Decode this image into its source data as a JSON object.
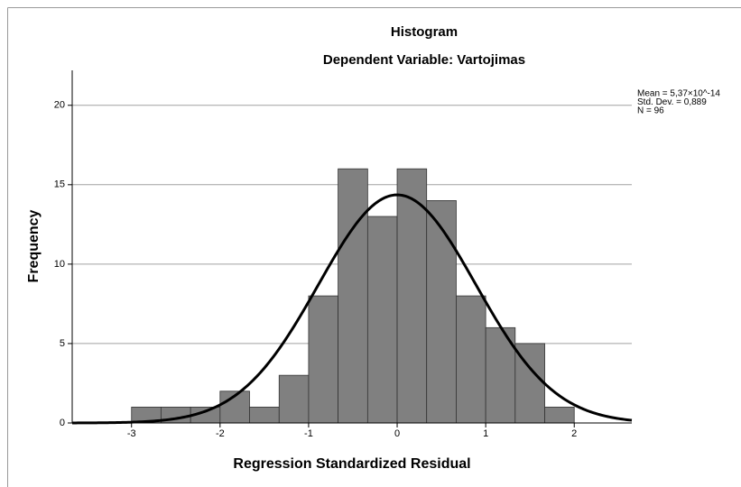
{
  "chart_data": {
    "type": "histogram",
    "title": "Histogram",
    "subtitle": "Dependent Variable: Vartojimas",
    "x_label": "Regression Standardized Residual",
    "y_label": "Frequency",
    "bins": [
      -3,
      -2.667,
      -2.333,
      -2,
      -1.667,
      -1.333,
      -1,
      -0.667,
      -0.333,
      0,
      0.333,
      0.667,
      1,
      1.333,
      1.667,
      2
    ],
    "values": [
      1,
      1,
      1,
      2,
      1,
      3,
      8,
      16,
      13,
      16,
      14,
      8,
      6,
      5,
      1
    ],
    "color": "#808080",
    "xlim": [
      -3.67,
      2.65
    ],
    "xticks": [
      -3,
      -2,
      -1,
      0,
      1,
      2
    ],
    "ylim": [
      0,
      22.2
    ],
    "yticks": [
      0,
      5,
      10,
      15,
      20
    ],
    "grid": true,
    "stats_lines": [
      "Mean = 5,37×10^-14",
      "Std. Dev. = 0,889",
      "N = 96"
    ],
    "normal_curve": {
      "mean": 5.37e-14,
      "std_dev": 0.889,
      "n": 96,
      "color": "#000000"
    }
  }
}
